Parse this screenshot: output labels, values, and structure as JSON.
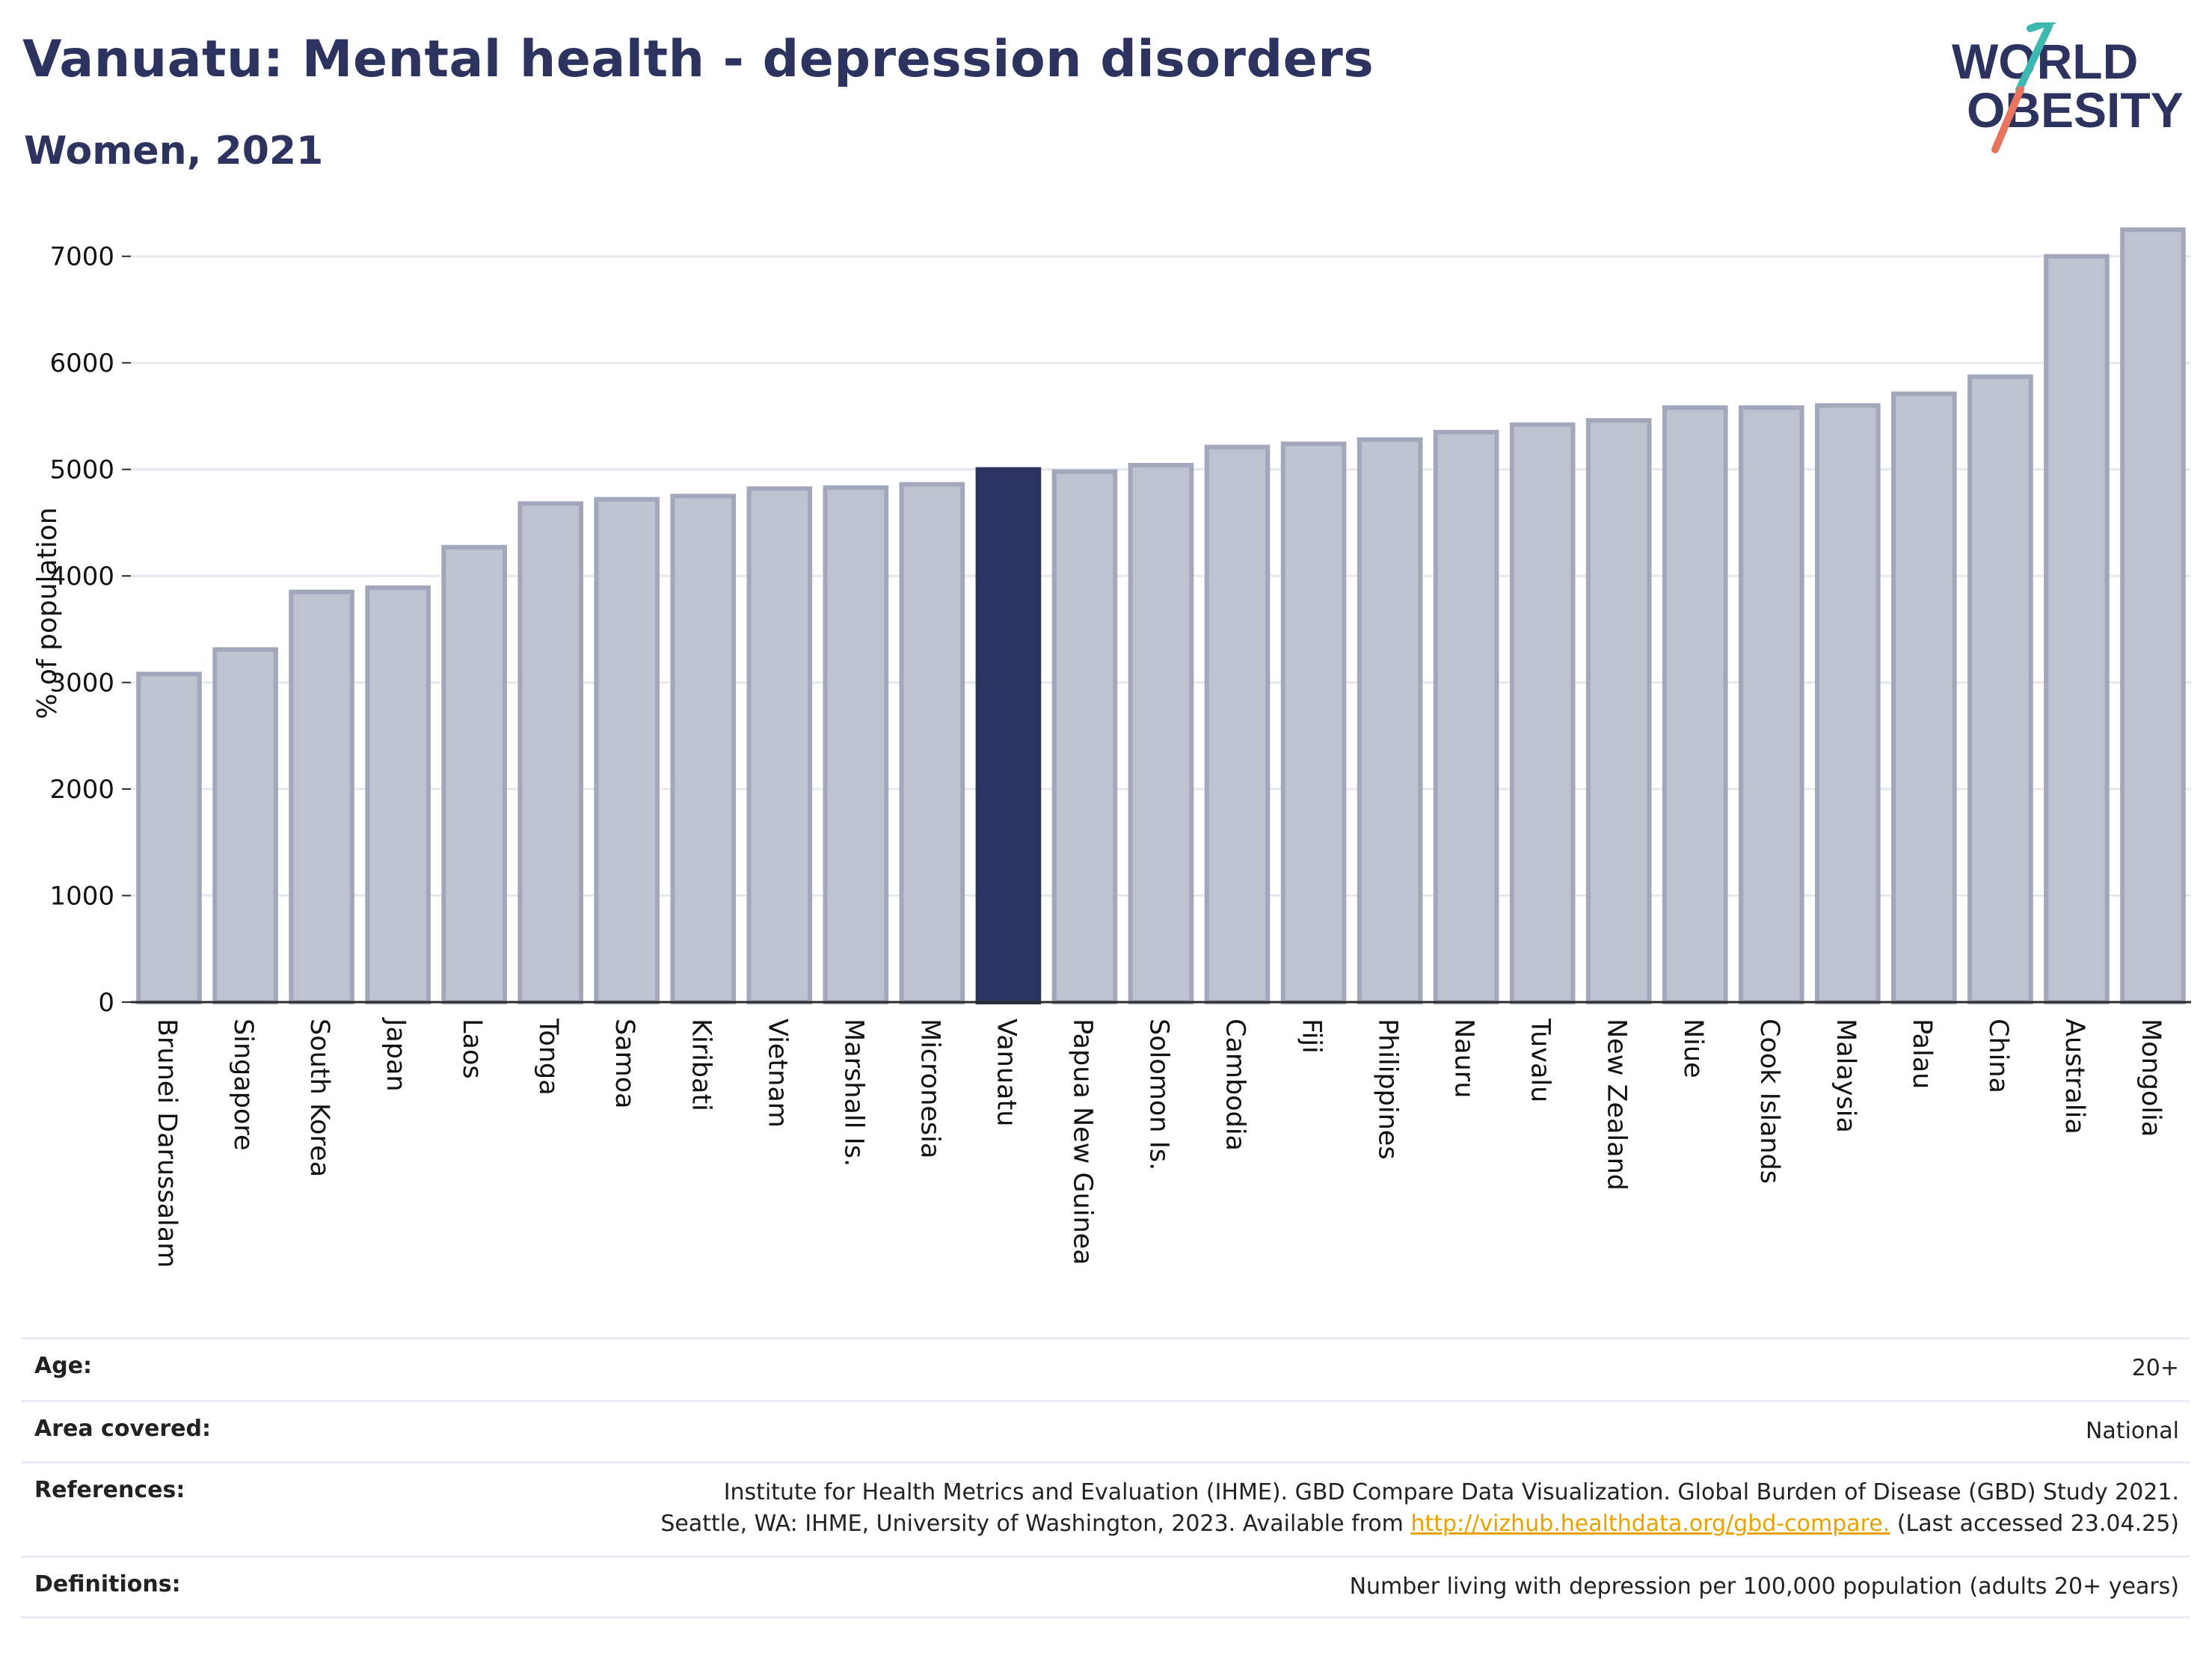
{
  "header": {
    "title": "Vanuatu: Mental health - depression disorders",
    "subtitle": "Women, 2021"
  },
  "logo": {
    "line1": "WORLD",
    "line2": "OBESITY"
  },
  "colors": {
    "highlight": "#2b335e",
    "bar_fill": "#bfc2cf",
    "bar_stroke": "#a3a7bc",
    "text": "#2b335e",
    "logo_teal": "#3cb8b0",
    "logo_coral": "#e8735f",
    "link": "#e8a200"
  },
  "chart_data": {
    "type": "bar",
    "ylabel": "% of population",
    "xlabel": "",
    "ylim": [
      0,
      7300
    ],
    "yticks": [
      0,
      1000,
      2000,
      3000,
      4000,
      5000,
      6000,
      7000
    ],
    "grid": true,
    "highlight": "Vanuatu",
    "categories": [
      "Brunei Darussalam",
      "Singapore",
      "South Korea",
      "Japan",
      "Laos",
      "Tonga",
      "Samoa",
      "Kiribati",
      "Vietnam",
      "Marshall Is.",
      "Micronesia",
      "Vanuatu",
      "Papua New Guinea",
      "Solomon Is.",
      "Cambodia",
      "Fiji",
      "Philippines",
      "Nauru",
      "Tuvalu",
      "New Zealand",
      "Niue",
      "Cook Islands",
      "Malaysia",
      "Palau",
      "China",
      "Australia",
      "Mongolia"
    ],
    "values": [
      3080,
      3310,
      3850,
      3890,
      4270,
      4680,
      4720,
      4750,
      4820,
      4830,
      4860,
      5000,
      4980,
      5040,
      5210,
      5240,
      5280,
      5350,
      5420,
      5460,
      5580,
      5580,
      5600,
      5710,
      5870,
      7000,
      7250
    ]
  },
  "meta": {
    "age": {
      "label": "Age:",
      "value": "20+"
    },
    "area": {
      "label": "Area covered:",
      "value": "National"
    },
    "references": {
      "label": "References:",
      "line1": "Institute for Health Metrics and Evaluation (IHME). GBD Compare Data Visualization. Global Burden of Disease (GBD) Study 2021.",
      "line2_prefix": "Seattle, WA: IHME, University of Washington, 2023. Available from ",
      "link": "http://vizhub.healthdata.org/gbd-compare.",
      "line2_suffix": " (Last accessed 23.04.25)"
    },
    "definitions": {
      "label": "Definitions:",
      "value": "Number living with depression per 100,000 population (adults 20+ years)"
    }
  }
}
